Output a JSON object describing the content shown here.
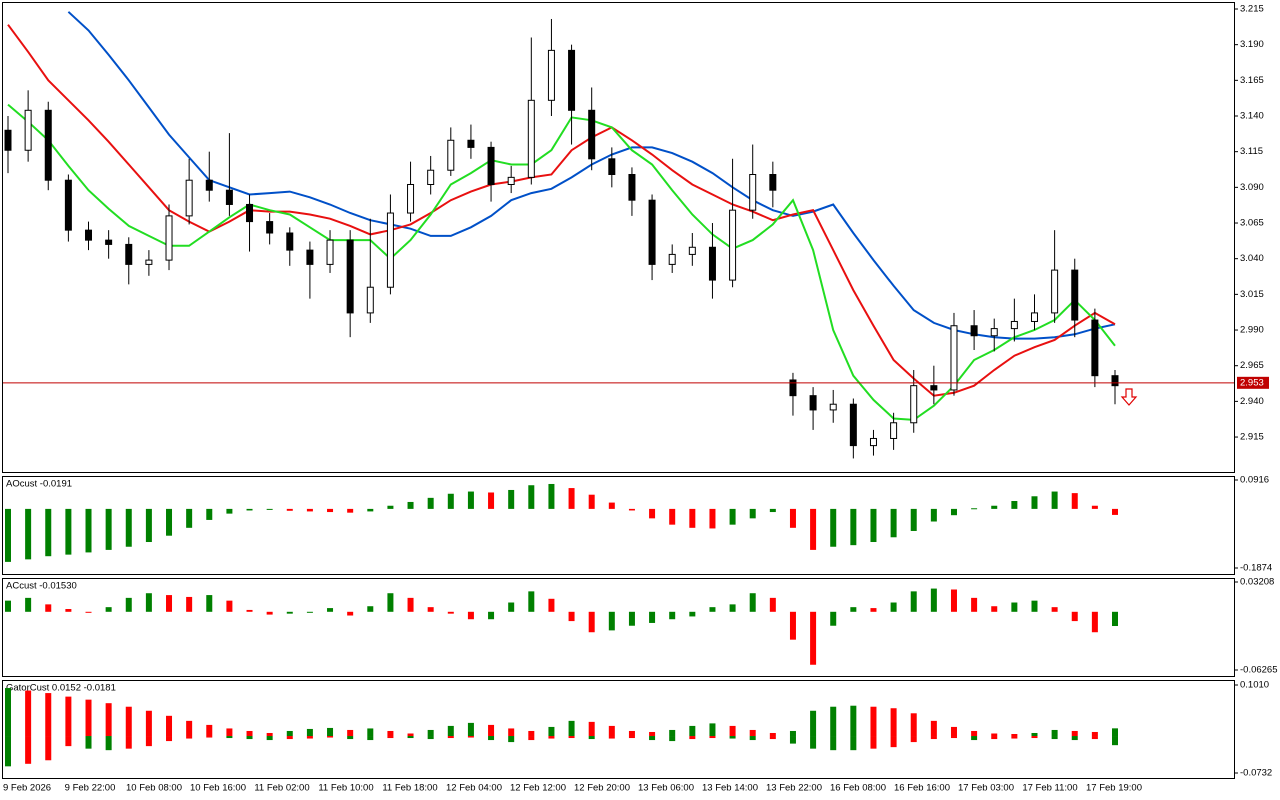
{
  "chart_data": [
    {
      "type": "candlestick",
      "ylim": [
        2.8905,
        3.2199
      ],
      "yticks": [
        3.215,
        {
          "value": 3.19,
          "label": "3.190"
        },
        3.165,
        {
          "value": 3.14,
          "label": "3.140"
        },
        3.115,
        {
          "value": 3.09,
          "label": "3.090"
        },
        3.065,
        {
          "value": 3.04,
          "label": "3.040"
        },
        3.015,
        {
          "value": 2.99,
          "label": "2.990"
        },
        2.965,
        {
          "value": 2.94,
          "label": "2.940"
        },
        2.915
      ],
      "current_price": 2.953,
      "bull_color": "#ffffff",
      "bear_color": "#000000",
      "price_line_color": "#c00000",
      "open": [
        3.13,
        3.116,
        3.144,
        3.095,
        3.06,
        3.053,
        3.05,
        3.036,
        3.039,
        3.07,
        3.095,
        3.088,
        3.078,
        3.066,
        3.058,
        3.046,
        3.036,
        3.053,
        3.002,
        3.02,
        3.072,
        3.092,
        3.102,
        3.123,
        3.118,
        3.092,
        3.097,
        3.151,
        3.186,
        3.144,
        3.11,
        3.099,
        3.081,
        3.036,
        3.043,
        3.048,
        3.025,
        3.074,
        3.099,
        2.955,
        2.944,
        2.934,
        2.938,
        2.909,
        2.914,
        2.925,
        2.951,
        2.948,
        2.993,
        2.986,
        2.991,
        2.996,
        3.002,
        3.032,
        2.997,
        2.958
      ],
      "high": [
        3.14,
        3.158,
        3.15,
        3.099,
        3.066,
        3.06,
        3.055,
        3.046,
        3.078,
        3.11,
        3.115,
        3.128,
        3.085,
        3.072,
        3.062,
        3.052,
        3.06,
        3.06,
        3.068,
        3.085,
        3.108,
        3.112,
        3.132,
        3.134,
        3.122,
        3.105,
        3.195,
        3.208,
        3.19,
        3.16,
        3.118,
        3.104,
        3.085,
        3.05,
        3.058,
        3.065,
        3.11,
        3.12,
        3.108,
        2.96,
        2.95,
        2.948,
        2.942,
        2.92,
        2.932,
        2.962,
        2.965,
        3.002,
        3.004,
        2.998,
        3.012,
        3.015,
        3.06,
        3.04,
        3.005,
        2.962
      ],
      "low": [
        3.1,
        3.108,
        3.088,
        3.052,
        3.046,
        3.04,
        3.022,
        3.028,
        3.032,
        3.064,
        3.08,
        3.07,
        3.045,
        3.05,
        3.035,
        3.012,
        3.03,
        2.985,
        2.995,
        3.015,
        3.066,
        3.085,
        3.098,
        3.11,
        3.08,
        3.086,
        3.092,
        3.14,
        3.12,
        3.102,
        3.09,
        3.07,
        3.025,
        3.03,
        3.035,
        3.012,
        3.02,
        3.068,
        3.076,
        2.93,
        2.92,
        2.925,
        2.9,
        2.902,
        2.906,
        2.918,
        2.938,
        2.944,
        2.976,
        2.975,
        2.982,
        2.99,
        2.995,
        2.985,
        2.95,
        2.938
      ],
      "close": [
        3.116,
        3.144,
        3.095,
        3.06,
        3.053,
        3.05,
        3.036,
        3.039,
        3.07,
        3.095,
        3.088,
        3.078,
        3.066,
        3.058,
        3.046,
        3.036,
        3.053,
        3.002,
        3.02,
        3.072,
        3.092,
        3.102,
        3.123,
        3.118,
        3.092,
        3.097,
        3.151,
        3.186,
        3.144,
        3.11,
        3.099,
        3.081,
        3.036,
        3.043,
        3.048,
        3.025,
        3.074,
        3.099,
        3.088,
        2.944,
        2.934,
        2.938,
        2.909,
        2.914,
        2.925,
        2.951,
        2.948,
        2.993,
        2.986,
        2.991,
        2.996,
        3.002,
        3.032,
        2.997,
        2.958,
        2.951
      ],
      "series": [
        {
          "color": "#0050c8",
          "values": [
            null,
            null,
            null,
            3.213,
            3.2,
            3.183,
            3.165,
            3.146,
            3.127,
            3.111,
            3.095,
            3.09,
            3.085,
            3.086,
            3.087,
            3.083,
            3.078,
            3.072,
            3.067,
            3.064,
            3.061,
            3.056,
            3.056,
            3.062,
            3.07,
            3.081,
            3.086,
            3.089,
            3.097,
            3.106,
            3.113,
            3.118,
            3.118,
            3.114,
            3.108,
            3.1,
            3.09,
            3.081,
            3.074,
            3.07,
            3.073,
            3.078,
            3.058,
            3.039,
            3.021,
            3.004,
            2.995,
            2.99,
            2.987,
            2.985,
            2.984,
            2.984,
            2.985,
            2.987,
            2.991,
            2.994
          ]
        },
        {
          "color": "#e81010",
          "values": [
            3.204,
            3.185,
            3.165,
            3.151,
            3.137,
            3.122,
            3.106,
            3.09,
            3.074,
            3.066,
            3.059,
            3.066,
            3.074,
            3.073,
            3.073,
            3.071,
            3.068,
            3.063,
            3.057,
            3.06,
            3.064,
            3.072,
            3.081,
            3.087,
            3.092,
            3.094,
            3.097,
            3.099,
            3.116,
            3.125,
            3.132,
            3.123,
            3.113,
            3.102,
            3.092,
            3.085,
            3.078,
            3.073,
            3.067,
            3.071,
            3.074,
            3.046,
            3.018,
            2.993,
            2.969,
            2.956,
            2.944,
            2.946,
            2.951,
            2.962,
            2.972,
            2.978,
            2.983,
            2.993,
            3.002,
            2.994
          ]
        },
        {
          "color": "#22dd22",
          "values": [
            3.148,
            3.136,
            3.123,
            3.105,
            3.088,
            3.075,
            3.063,
            3.056,
            3.049,
            3.049,
            3.059,
            3.069,
            3.078,
            3.074,
            3.071,
            3.062,
            3.053,
            3.053,
            3.053,
            3.04,
            3.053,
            3.071,
            3.092,
            3.1,
            3.109,
            3.106,
            3.106,
            3.116,
            3.139,
            3.137,
            3.132,
            3.116,
            3.106,
            3.088,
            3.071,
            3.057,
            3.047,
            3.053,
            3.064,
            3.081,
            3.046,
            2.99,
            2.958,
            2.941,
            2.928,
            2.927,
            2.937,
            2.951,
            2.969,
            2.976,
            2.985,
            2.99,
            2.997,
            3.011,
            2.997,
            2.979
          ]
        }
      ]
    },
    {
      "type": "bar",
      "title": "AOcust -0.0191",
      "ylim": [
        -0.1874,
        0.0916
      ],
      "yticks": [
        0.0916,
        -0.1874
      ],
      "up_color": "#008000",
      "down_color": "#ff0000",
      "series": [
        {
          "values": [
            -0.168,
            -0.16,
            -0.15,
            -0.145,
            -0.138,
            -0.13,
            -0.12,
            -0.105,
            -0.085,
            -0.06,
            -0.035,
            -0.015,
            -0.005,
            -0.003,
            -0.006,
            -0.008,
            -0.01,
            -0.012,
            -0.008,
            0.01,
            0.022,
            0.035,
            0.048,
            0.055,
            0.052,
            0.06,
            0.075,
            0.079,
            0.066,
            0.045,
            0.02,
            -0.005,
            -0.03,
            -0.05,
            -0.06,
            -0.062,
            -0.05,
            -0.03,
            -0.01,
            -0.06,
            -0.13,
            -0.12,
            -0.115,
            -0.105,
            -0.09,
            -0.07,
            -0.04,
            -0.02,
            0.002,
            0.01,
            0.025,
            0.04,
            0.055,
            0.05,
            0.01,
            -0.0191
          ]
        }
      ]
    },
    {
      "type": "bar",
      "title": "ACcust -0.01530",
      "ylim": [
        -0.06265,
        0.03208
      ],
      "yticks": [
        0.03208,
        -0.06265
      ],
      "up_color": "#008000",
      "down_color": "#ff0000",
      "series": [
        {
          "values": [
            0.012,
            0.015,
            0.008,
            0.003,
            -0.001,
            0.005,
            0.015,
            0.02,
            0.018,
            0.016,
            0.018,
            0.012,
            0.002,
            -0.003,
            -0.002,
            -0.001,
            0.004,
            -0.004,
            0.006,
            0.02,
            0.015,
            0.005,
            -0.002,
            -0.008,
            -0.008,
            0.01,
            0.022,
            0.014,
            -0.01,
            -0.022,
            -0.02,
            -0.015,
            -0.012,
            -0.008,
            -0.005,
            0.005,
            0.008,
            0.02,
            0.015,
            -0.03,
            -0.057,
            -0.015,
            0.005,
            0.004,
            0.01,
            0.022,
            0.025,
            0.024,
            0.015,
            0.006,
            0.01,
            0.012,
            0.005,
            -0.01,
            -0.022,
            -0.0153
          ]
        }
      ]
    },
    {
      "type": "gator",
      "title": "GatorCust 0.0152 -0.0181",
      "ylim": [
        -0.0732,
        0.101
      ],
      "yticks": [
        {
          "value": 0.101,
          "label": "0.1010"
        },
        -0.0732
      ],
      "up_color": "#008000",
      "down_color": "#ff0000",
      "series": [
        {
          "values": [
            0.095,
            0.09,
            0.085,
            0.078,
            0.072,
            0.065,
            0.058,
            0.05,
            0.04,
            0.03,
            0.022,
            0.015,
            0.01,
            0.006,
            0.01,
            0.014,
            0.016,
            0.012,
            0.015,
            0.01,
            0.005,
            0.012,
            0.02,
            0.026,
            0.022,
            0.015,
            0.01,
            0.018,
            0.03,
            0.028,
            0.02,
            0.01,
            0.008,
            0.012,
            0.02,
            0.025,
            0.02,
            0.012,
            0.006,
            0.01,
            0.05,
            0.058,
            0.06,
            0.058,
            0.055,
            0.045,
            0.03,
            0.018,
            0.01,
            0.005,
            0.004,
            0.006,
            0.012,
            0.01,
            0.008,
            0.0152
          ]
        },
        {
          "values": [
            -0.06,
            -0.055,
            -0.048,
            -0.02,
            -0.025,
            -0.028,
            -0.025,
            -0.02,
            -0.01,
            -0.005,
            -0.003,
            -0.004,
            -0.006,
            -0.008,
            -0.006,
            -0.005,
            -0.003,
            -0.006,
            -0.008,
            -0.004,
            -0.004,
            -0.006,
            -0.004,
            -0.003,
            -0.008,
            -0.012,
            -0.008,
            -0.005,
            -0.004,
            -0.006,
            -0.005,
            -0.004,
            -0.008,
            -0.01,
            -0.006,
            -0.004,
            -0.005,
            -0.008,
            -0.006,
            -0.015,
            -0.025,
            -0.028,
            -0.028,
            -0.025,
            -0.022,
            -0.012,
            -0.006,
            -0.004,
            -0.008,
            -0.006,
            -0.005,
            -0.004,
            -0.006,
            -0.008,
            -0.006,
            -0.0181
          ]
        }
      ],
      "xlabels": [
        "9 Feb 2026",
        "9 Feb 22:00",
        "10 Feb 08:00",
        "10 Feb 16:00",
        "11 Feb 02:00",
        "11 Feb 10:00",
        "11 Feb 18:00",
        "12 Feb 04:00",
        "12 Feb 12:00",
        "12 Feb 20:00",
        "13 Feb 06:00",
        "13 Feb 14:00",
        "13 Feb 22:00",
        "16 Feb 08:00",
        "16 Feb 16:00",
        "17 Feb 03:00",
        "17 Feb 11:00",
        "17 Feb 19:00"
      ]
    }
  ]
}
